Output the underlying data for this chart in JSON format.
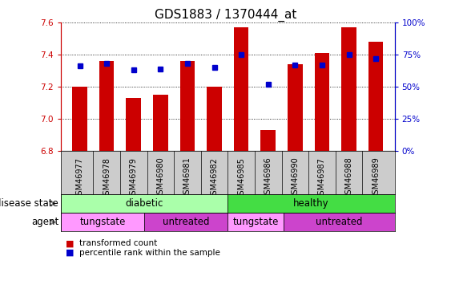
{
  "title": "GDS1883 / 1370444_at",
  "samples": [
    "GSM46977",
    "GSM46978",
    "GSM46979",
    "GSM46980",
    "GSM46981",
    "GSM46982",
    "GSM46985",
    "GSM46986",
    "GSM46990",
    "GSM46987",
    "GSM46988",
    "GSM46989"
  ],
  "bar_values": [
    7.2,
    7.36,
    7.13,
    7.15,
    7.36,
    7.2,
    7.57,
    6.93,
    7.34,
    7.41,
    7.57,
    7.48
  ],
  "percentile_values": [
    66,
    68,
    63,
    64,
    68,
    65,
    75,
    52,
    67,
    67,
    75,
    72
  ],
  "ylim_left": [
    6.8,
    7.6
  ],
  "ylim_right": [
    0,
    100
  ],
  "yticks_left": [
    6.8,
    7.0,
    7.2,
    7.4,
    7.6
  ],
  "yticks_right": [
    0,
    25,
    50,
    75,
    100
  ],
  "bar_color": "#cc0000",
  "percentile_color": "#0000cc",
  "bar_width": 0.55,
  "disease_groups": [
    {
      "label": "diabetic",
      "start": 0,
      "end": 5,
      "color": "#aaffaa"
    },
    {
      "label": "healthy",
      "start": 6,
      "end": 11,
      "color": "#44dd44"
    }
  ],
  "agent_groups": [
    {
      "label": "tungstate",
      "start": 0,
      "end": 2,
      "color": "#ff99ff"
    },
    {
      "label": "untreated",
      "start": 3,
      "end": 5,
      "color": "#cc44cc"
    },
    {
      "label": "tungstate",
      "start": 6,
      "end": 7,
      "color": "#ff99ff"
    },
    {
      "label": "untreated",
      "start": 8,
      "end": 11,
      "color": "#cc44cc"
    }
  ],
  "ytick_right_labels": [
    "0%",
    "25%",
    "50%",
    "75%",
    "100%"
  ],
  "tick_color_left": "#cc0000",
  "tick_color_right": "#0000cc",
  "tick_fontsize": 7.5,
  "title_fontsize": 11,
  "label_fontsize": 8.5,
  "xtick_fontsize": 7.0,
  "legend_bar_label": "transformed count",
  "legend_pct_label": "percentile rank within the sample"
}
